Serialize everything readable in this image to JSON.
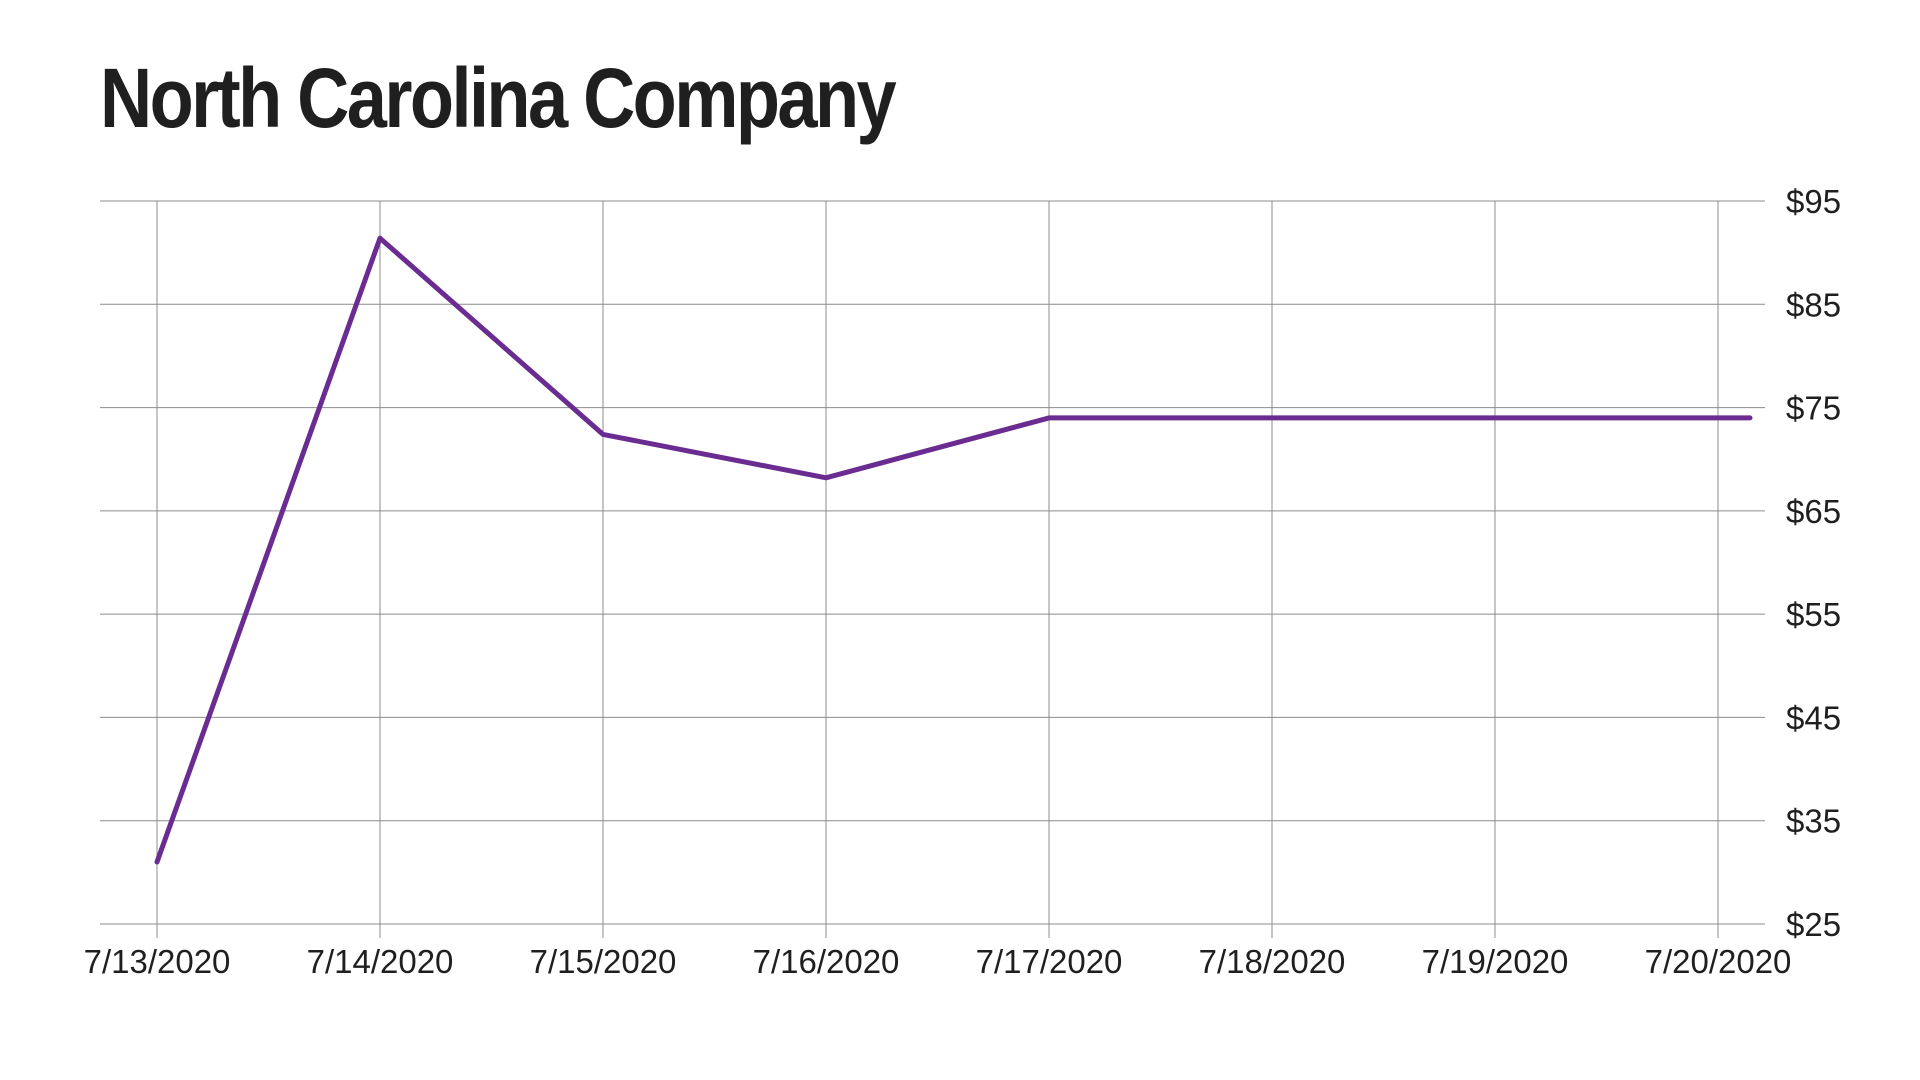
{
  "chart_data": {
    "type": "line",
    "title": "North Carolina Company",
    "x": [
      "7/13/2020",
      "7/14/2020",
      "7/15/2020",
      "7/16/2020",
      "7/17/2020",
      "7/18/2020",
      "7/19/2020",
      "7/20/2020"
    ],
    "y_ticks": [
      "$95",
      "$85",
      "$75",
      "$65",
      "$55",
      "$45",
      "$35",
      "$25"
    ],
    "ylim": [
      25,
      95
    ],
    "y_axis_position": "right",
    "grid": true,
    "series": [
      {
        "points": [
          {
            "x": "7/13/2020",
            "y": 31
          },
          {
            "x": "7/14/2020",
            "y": 91.4
          },
          {
            "x": "7/15/2020",
            "y": 72.4
          },
          {
            "x": "7/16/2020",
            "y": 68.2
          },
          {
            "x": "7/17/2020",
            "y": 74
          },
          {
            "x": "7/18/2020",
            "y": 74
          },
          {
            "x": "7/19/2020",
            "y": 74
          },
          {
            "x": "7/20/2020",
            "y": 74
          }
        ],
        "color": "#6a2c91"
      }
    ],
    "colors": {
      "line": "#6a2c91",
      "grid": "#8c8c8c",
      "text": "#1f1f1f"
    }
  }
}
